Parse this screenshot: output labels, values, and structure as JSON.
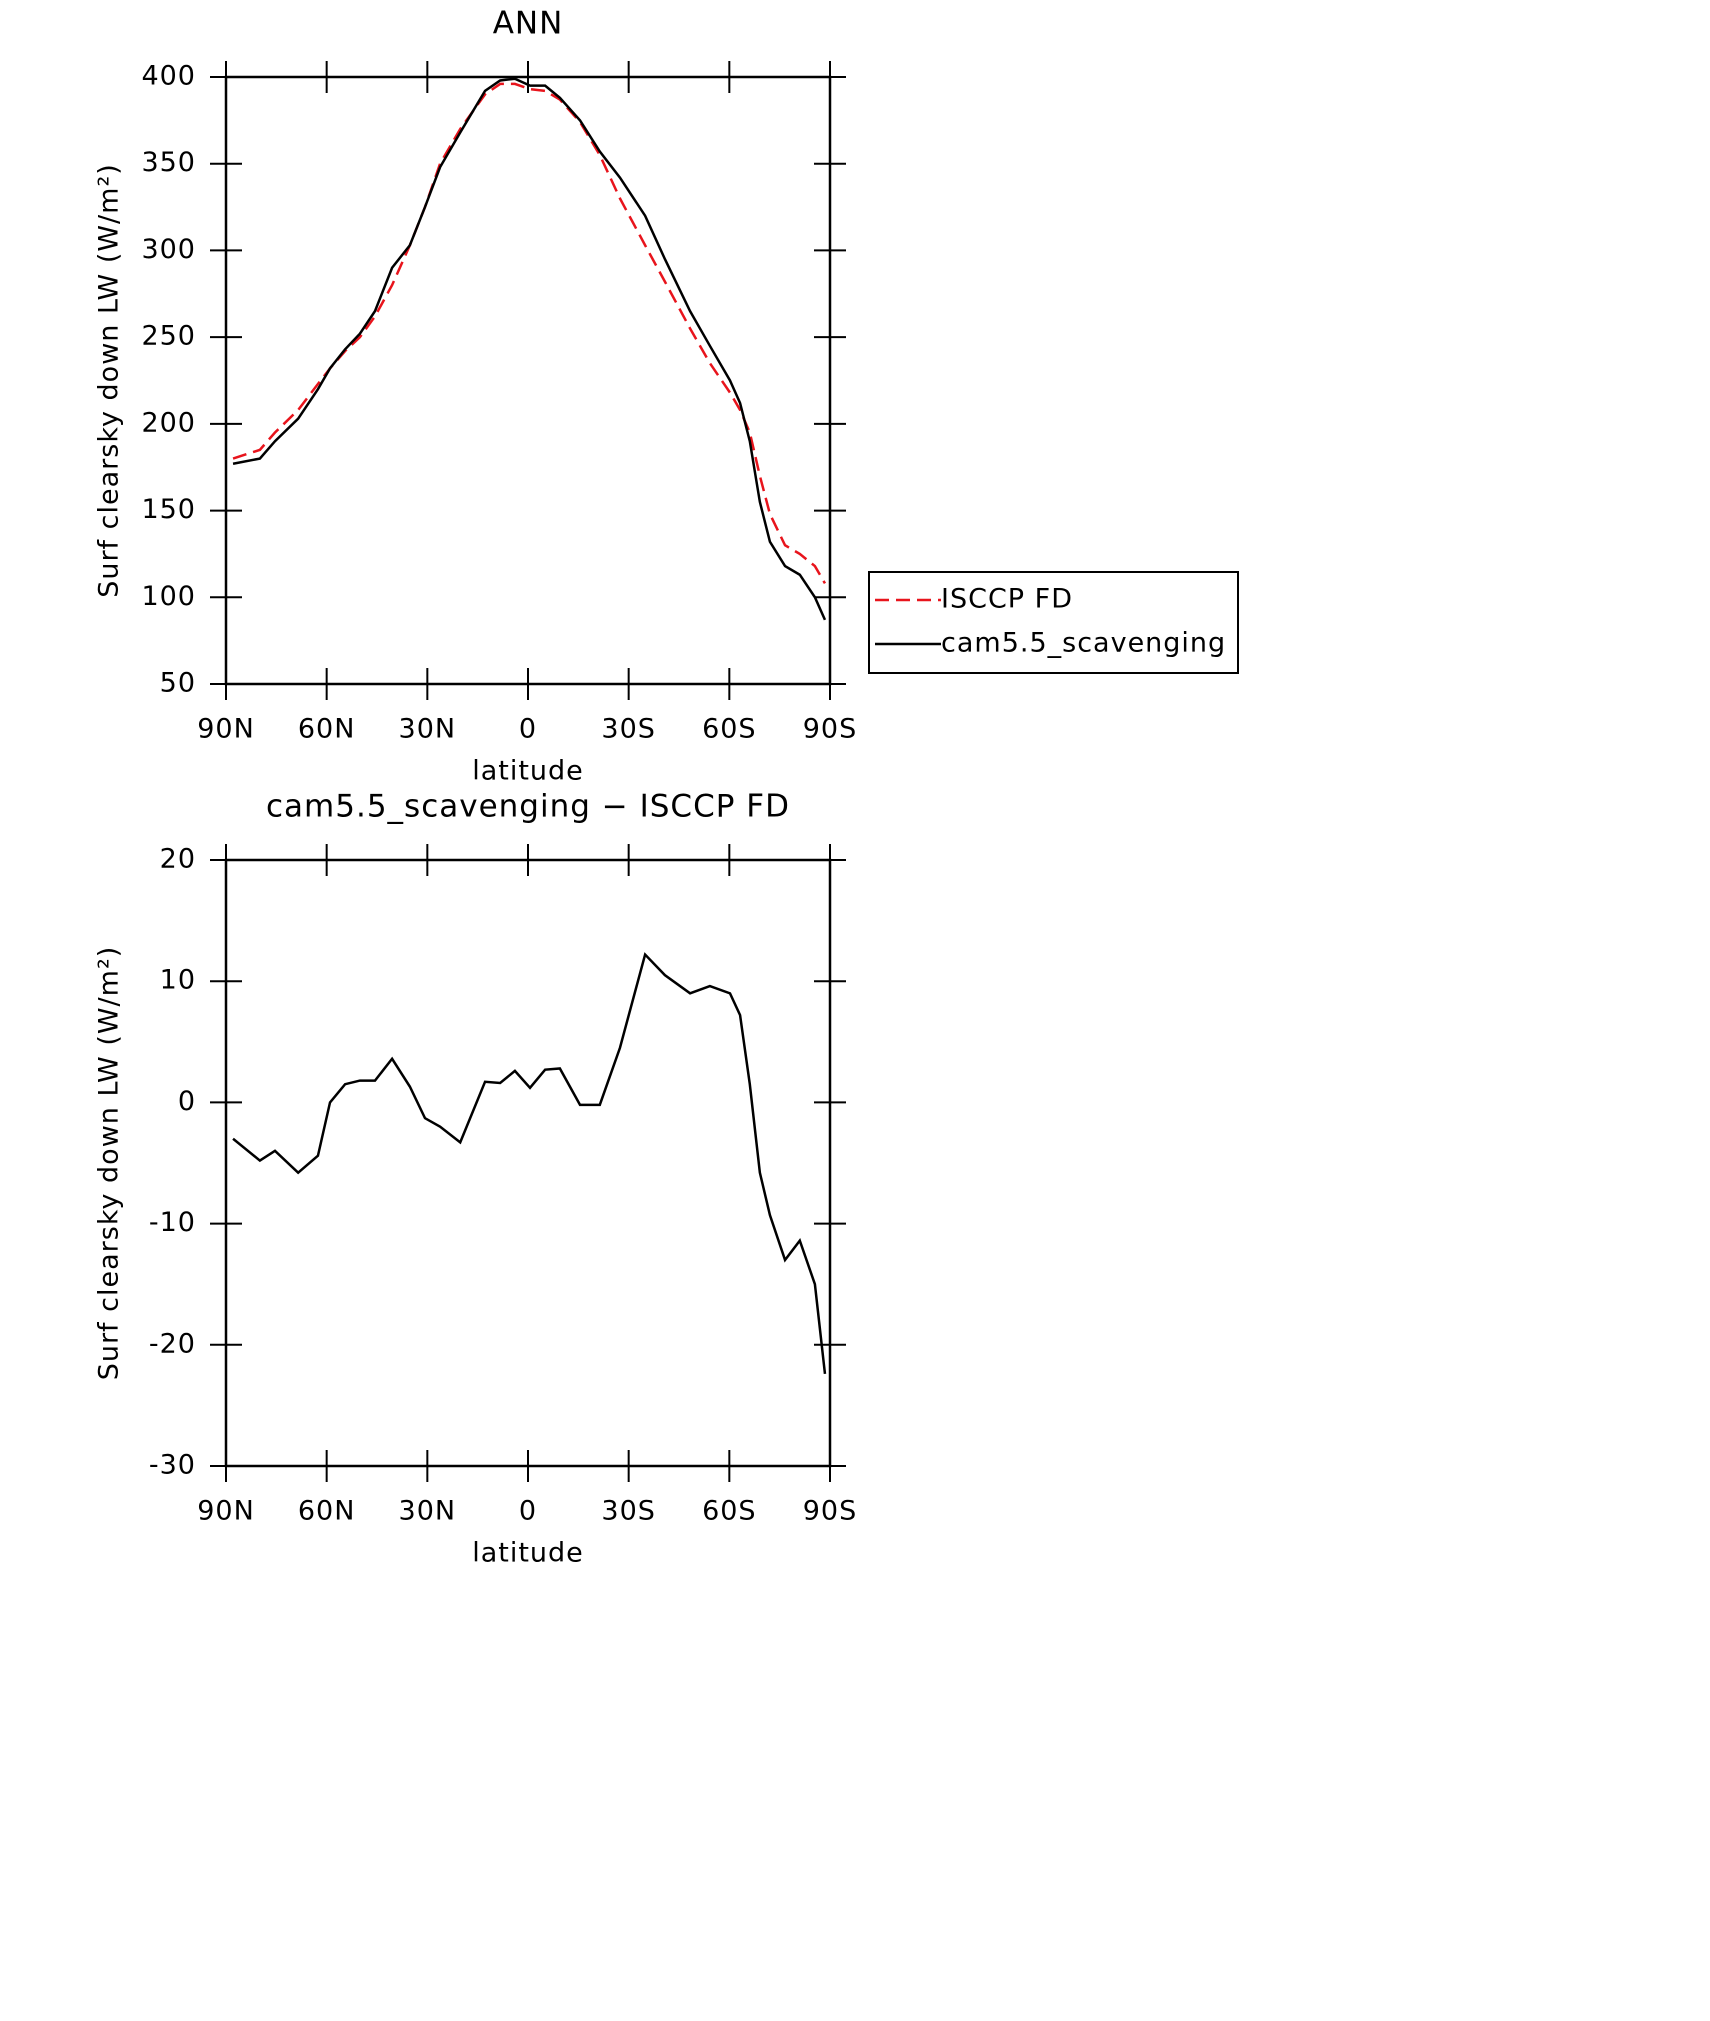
{
  "chart_data": [
    {
      "type": "line",
      "title": "ANN",
      "xlabel": "latitude",
      "ylabel": "Surf clearsky down LW (W/m²)",
      "x": [
        87.9,
        79.9,
        75.4,
        68.5,
        62.6,
        59.0,
        54.5,
        50.1,
        45.6,
        40.5,
        35.2,
        30.7,
        26.2,
        20.2,
        12.8,
        8.3,
        3.9,
        -0.6,
        -5.1,
        -9.5,
        -15.5,
        -21.4,
        -27.4,
        -34.9,
        -40.8,
        -48.3,
        -54.2,
        -60.2,
        -63.2,
        -66.1,
        -69.1,
        -72.1,
        -76.6,
        -81.0,
        -85.5,
        -88.5
      ],
      "series": [
        {
          "name": "ISCCP FD",
          "color": "#e8141c",
          "dash": true,
          "values": [
            180,
            185,
            195,
            208,
            223,
            232,
            242,
            250,
            262,
            280,
            303,
            325,
            350,
            370,
            390,
            396,
            396,
            393,
            392,
            387,
            374,
            355,
            330,
            303,
            282,
            255,
            235,
            218,
            208,
            195,
            170,
            148,
            130,
            125,
            118,
            108
          ]
        },
        {
          "name": "cam5.5_scavenging",
          "color": "#000000",
          "dash": false,
          "values": [
            177,
            180,
            190,
            203,
            220,
            232,
            243,
            252,
            265,
            290,
            303,
            325,
            348,
            368,
            392,
            398,
            399,
            395,
            395,
            388,
            375,
            357,
            342,
            320,
            295,
            265,
            245,
            225,
            212,
            190,
            155,
            132,
            118,
            113,
            100,
            87
          ]
        }
      ],
      "xlim": [
        90,
        -90
      ],
      "xticks": [
        {
          "value": 90,
          "label": "90N"
        },
        {
          "value": 60,
          "label": "60N"
        },
        {
          "value": 30,
          "label": "30N"
        },
        0,
        {
          "value": -30,
          "label": "30S"
        },
        {
          "value": -60,
          "label": "60S"
        },
        {
          "value": -90,
          "label": "90S"
        }
      ],
      "ylim": [
        50,
        400
      ],
      "yticks": [
        50,
        100,
        150,
        200,
        250,
        300,
        350,
        400
      ],
      "legend": "right"
    },
    {
      "type": "line",
      "title": "cam5.5_scavenging − ISCCP FD",
      "xlabel": "latitude",
      "ylabel": "Surf clearsky down LW (W/m²)",
      "x": [
        87.9,
        79.9,
        75.4,
        68.5,
        62.6,
        59.0,
        54.5,
        50.1,
        45.6,
        40.5,
        35.2,
        30.7,
        26.2,
        20.2,
        12.8,
        8.3,
        3.9,
        -0.6,
        -5.1,
        -9.5,
        -15.5,
        -21.4,
        -27.4,
        -34.9,
        -40.8,
        -48.3,
        -54.2,
        -60.2,
        -63.2,
        -66.1,
        -69.1,
        -72.1,
        -76.6,
        -81.0,
        -85.5,
        -88.5
      ],
      "series": [
        {
          "color": "#000000",
          "dash": false,
          "values": [
            -3,
            -4.8,
            -4,
            -5.8,
            -4.4,
            0,
            1.5,
            1.8,
            1.8,
            3.6,
            1.3,
            -1.3,
            -2,
            -3.3,
            1.7,
            1.6,
            2.6,
            1.2,
            2.7,
            2.8,
            -0.2,
            -0.2,
            4.5,
            12.2,
            10.5,
            9,
            9.6,
            9,
            7.2,
            1.5,
            -5.8,
            -9.3,
            -13,
            -11.4,
            -15,
            -22.4
          ]
        }
      ],
      "xlim": [
        90,
        -90
      ],
      "xticks": [
        {
          "value": 90,
          "label": "90N"
        },
        {
          "value": 60,
          "label": "60N"
        },
        {
          "value": 30,
          "label": "30N"
        },
        0,
        {
          "value": -30,
          "label": "30S"
        },
        {
          "value": -60,
          "label": "60S"
        },
        {
          "value": -90,
          "label": "90S"
        }
      ],
      "ylim": [
        -30,
        20
      ],
      "yticks": [
        -30,
        -20,
        -10,
        0,
        10,
        20
      ]
    }
  ]
}
